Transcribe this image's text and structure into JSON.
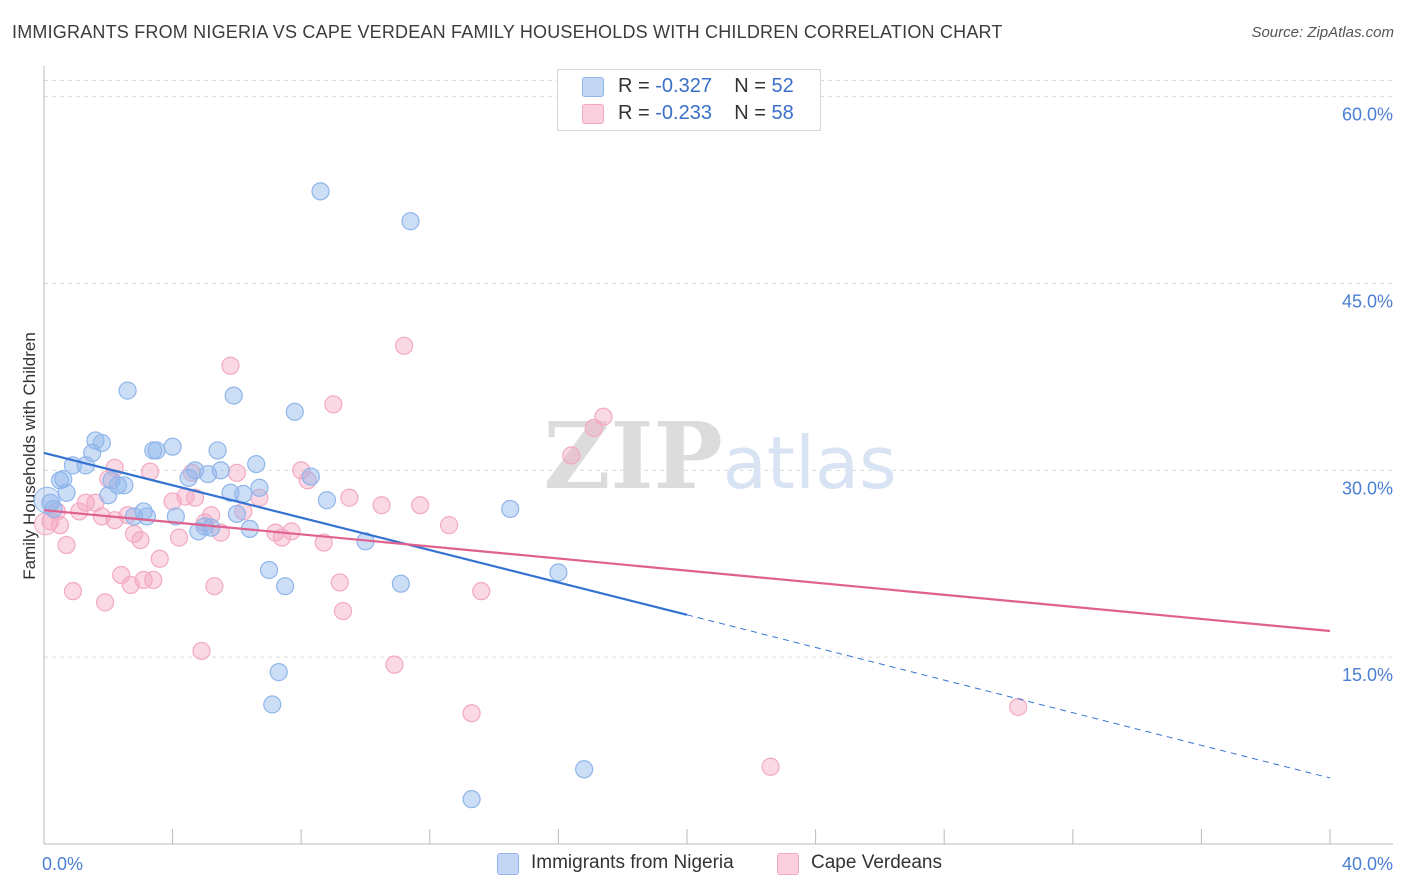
{
  "title": "IMMIGRANTS FROM NIGERIA VS CAPE VERDEAN FAMILY HOUSEHOLDS WITH CHILDREN CORRELATION CHART",
  "source": "Source: ZipAtlas.com",
  "watermark": "ZIPatlas",
  "legend": {
    "rows": [
      {
        "r_label": "R =",
        "r_value": "-0.327",
        "n_label": "N =",
        "n_value": "52"
      },
      {
        "r_label": "R =",
        "r_value": "-0.233",
        "n_label": "N =",
        "n_value": "58"
      }
    ]
  },
  "bottom_legend": [
    "Immigrants from Nigeria",
    "Cape Verdeans"
  ],
  "chart_data": {
    "type": "scatter",
    "title": "IMMIGRANTS FROM NIGERIA VS CAPE VERDEAN FAMILY HOUSEHOLDS WITH CHILDREN CORRELATION CHART",
    "xlabel": "",
    "ylabel": "Family Households with Children",
    "xlim": [
      0,
      40
    ],
    "ylim": [
      0,
      61.5
    ],
    "x_tick_labels": [
      "0.0%",
      "40.0%"
    ],
    "y_ticks": [
      15,
      30,
      45,
      60
    ],
    "y_tick_labels": [
      "15.0%",
      "30.0%",
      "45.0%",
      "60.0%"
    ],
    "grid": true,
    "colors": {
      "nigeria": "#8fb5ea",
      "nigeria_line": "#3473d1",
      "cape": "#f3a9c3",
      "cape_line": "#e0608f"
    },
    "series": [
      {
        "name": "Immigrants from Nigeria",
        "r": -0.327,
        "n": 52,
        "trend": {
          "x0": 0,
          "y0": 31.4,
          "x1": 20,
          "y1": 18.4,
          "dash_to_x": 40,
          "dash_to_y": 5.3
        },
        "points": [
          [
            0.2,
            27.4
          ],
          [
            0.3,
            26.9
          ],
          [
            0.5,
            29.2
          ],
          [
            0.6,
            29.3
          ],
          [
            0.7,
            28.2
          ],
          [
            0.9,
            30.4
          ],
          [
            1.3,
            30.4
          ],
          [
            1.5,
            31.4
          ],
          [
            1.6,
            32.4
          ],
          [
            1.8,
            32.2
          ],
          [
            2.1,
            29.2
          ],
          [
            2.3,
            28.8
          ],
          [
            2.5,
            28.8
          ],
          [
            2.6,
            36.4
          ],
          [
            2.8,
            26.3
          ],
          [
            3.1,
            26.7
          ],
          [
            3.2,
            26.3
          ],
          [
            3.4,
            31.6
          ],
          [
            3.5,
            31.6
          ],
          [
            4.0,
            31.9
          ],
          [
            4.1,
            26.3
          ],
          [
            4.5,
            29.4
          ],
          [
            4.7,
            30.0
          ],
          [
            4.8,
            25.1
          ],
          [
            5.0,
            25.5
          ],
          [
            5.1,
            29.7
          ],
          [
            5.2,
            25.4
          ],
          [
            5.4,
            31.6
          ],
          [
            5.5,
            30.0
          ],
          [
            5.8,
            28.2
          ],
          [
            5.9,
            36.0
          ],
          [
            6.0,
            26.5
          ],
          [
            6.2,
            28.1
          ],
          [
            6.4,
            25.3
          ],
          [
            6.6,
            30.5
          ],
          [
            6.7,
            28.6
          ],
          [
            7.0,
            22.0
          ],
          [
            7.1,
            11.2
          ],
          [
            7.3,
            13.8
          ],
          [
            7.5,
            20.7
          ],
          [
            7.8,
            34.7
          ],
          [
            8.3,
            29.5
          ],
          [
            8.6,
            52.4
          ],
          [
            8.8,
            27.6
          ],
          [
            10.0,
            24.3
          ],
          [
            11.1,
            20.9
          ],
          [
            11.4,
            50.0
          ],
          [
            13.3,
            3.6
          ],
          [
            14.5,
            26.9
          ],
          [
            16.0,
            21.8
          ],
          [
            16.8,
            6.0
          ],
          [
            2.0,
            28.0
          ]
        ]
      },
      {
        "name": "Cape Verdeans",
        "r": -0.233,
        "n": 58,
        "trend": {
          "x0": 0,
          "y0": 26.8,
          "x1": 40,
          "y1": 17.1
        },
        "points": [
          [
            0.2,
            25.9
          ],
          [
            0.4,
            26.7
          ],
          [
            0.5,
            25.6
          ],
          [
            0.7,
            24.0
          ],
          [
            0.9,
            20.3
          ],
          [
            1.1,
            26.7
          ],
          [
            1.3,
            27.4
          ],
          [
            1.6,
            27.4
          ],
          [
            1.8,
            26.3
          ],
          [
            1.9,
            19.4
          ],
          [
            2.0,
            29.3
          ],
          [
            2.2,
            26.0
          ],
          [
            2.4,
            21.6
          ],
          [
            2.6,
            26.4
          ],
          [
            2.7,
            20.8
          ],
          [
            2.8,
            24.9
          ],
          [
            3.0,
            24.4
          ],
          [
            3.1,
            21.2
          ],
          [
            3.3,
            29.9
          ],
          [
            3.4,
            21.2
          ],
          [
            3.6,
            22.9
          ],
          [
            4.0,
            27.5
          ],
          [
            4.2,
            24.6
          ],
          [
            4.4,
            27.9
          ],
          [
            4.6,
            29.8
          ],
          [
            4.7,
            27.8
          ],
          [
            4.9,
            15.5
          ],
          [
            5.0,
            25.8
          ],
          [
            5.2,
            26.4
          ],
          [
            5.3,
            20.7
          ],
          [
            5.5,
            25.0
          ],
          [
            5.8,
            38.4
          ],
          [
            6.0,
            29.8
          ],
          [
            6.2,
            26.7
          ],
          [
            6.7,
            27.8
          ],
          [
            7.2,
            25.0
          ],
          [
            7.4,
            24.6
          ],
          [
            7.7,
            25.1
          ],
          [
            8.0,
            30.0
          ],
          [
            8.2,
            29.2
          ],
          [
            8.7,
            24.2
          ],
          [
            9.0,
            35.3
          ],
          [
            9.2,
            21.0
          ],
          [
            9.3,
            18.7
          ],
          [
            9.5,
            27.8
          ],
          [
            10.5,
            27.2
          ],
          [
            10.9,
            14.4
          ],
          [
            11.2,
            40.0
          ],
          [
            11.7,
            27.2
          ],
          [
            12.6,
            25.6
          ],
          [
            13.3,
            10.5
          ],
          [
            13.6,
            20.3
          ],
          [
            16.4,
            31.2
          ],
          [
            17.1,
            33.4
          ],
          [
            17.4,
            34.3
          ],
          [
            22.6,
            6.2
          ],
          [
            30.3,
            11.0
          ],
          [
            2.2,
            30.2
          ]
        ]
      }
    ]
  }
}
